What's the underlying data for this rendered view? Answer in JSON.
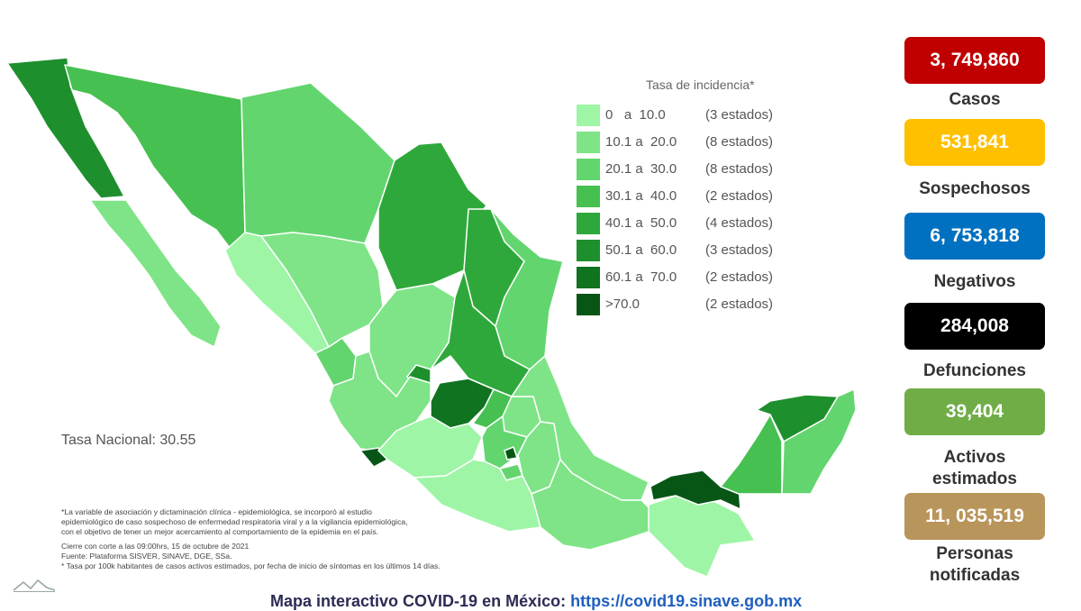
{
  "legend": {
    "title": "Tasa de incidencia*",
    "bins": [
      {
        "range": "0   a  10.0",
        "count": "(3 estados)",
        "color": "#9ef5a6"
      },
      {
        "range": "10.1 a  20.0",
        "count": "(8 estados)",
        "color": "#7fe487"
      },
      {
        "range": "20.1 a  30.0",
        "count": "(8 estados)",
        "color": "#63d56f"
      },
      {
        "range": "30.1 a  40.0",
        "count": "(2 estados)",
        "color": "#46c050"
      },
      {
        "range": "40.1 a  50.0",
        "count": "(4 estados)",
        "color": "#2fa83b"
      },
      {
        "range": "50.1 a  60.0",
        "count": "(3 estados)",
        "color": "#1e8f2d"
      },
      {
        "range": "60.1 a  70.0",
        "count": "(2 estados)",
        "color": "#0f7320"
      },
      {
        "range": ">70.0",
        "count": "(2 estados)",
        "color": "#075616"
      }
    ]
  },
  "national_rate": "Tasa Nacional: 30.55",
  "notes": {
    "line1": "*La variable de asociación y dictaminación clínica - epidemiológica, se incorporó al estudio",
    "line2": "epidemiológico de caso sospechoso de enfermedad respiratoria viral y a la vigilancia epidemiológica,",
    "line3": "con el objetivo de tener un mejor acercamiento al comportamiento de la epidemia en el país.",
    "line4": "Cierre con corte a las 09:00hrs, 15 de octubre de 2021",
    "line5": "Fuente: Plataforma SISVER, SINAVE, DGE, SSa.",
    "line6": "* Tasa por 100k habitantes de casos activos estimados, por fecha de inicio de síntomas en los últimos 14 días."
  },
  "footer": {
    "text": "Mapa interactivo COVID-19 en México:",
    "link": "https://covid19.sinave.gob.mx"
  },
  "stats": [
    {
      "value": "3, 749,860",
      "label": "Casos",
      "color": "#c00000"
    },
    {
      "value": "531,841",
      "label": "Sospechosos",
      "color": "#ffc000"
    },
    {
      "value": "6, 753,818",
      "label": "Negativos",
      "color": "#0070c0"
    },
    {
      "value": "284,008",
      "label": "Defunciones",
      "color": "#000000"
    },
    {
      "value": "39,404",
      "label": "Activos estimados",
      "color": "#70ad47"
    },
    {
      "value": "11, 035,519",
      "label": "Personas notificadas",
      "color": "#b8955a"
    }
  ]
}
